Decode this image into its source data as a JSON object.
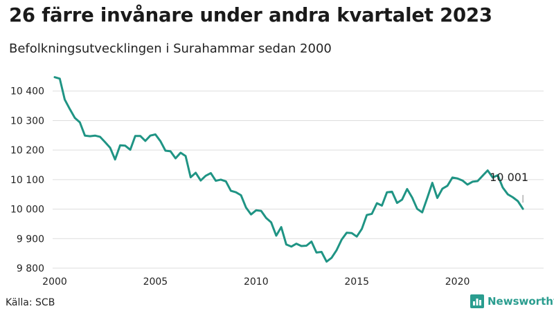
{
  "header": {
    "title": "26 färre invånare under andra kvartalet 2023",
    "subtitle": "Befolkningsutvecklingen i Surahammar sedan 2000"
  },
  "footer": {
    "source": "Källa: SCB",
    "brand": "Newsworthy"
  },
  "colors": {
    "line": "#1f9484",
    "grid": "#dddddd",
    "brand": "#2a9d8f"
  },
  "chart_data": {
    "type": "line",
    "title": "26 färre invånare under andra kvartalet 2023",
    "subtitle": "Befolkningsutvecklingen i Surahammar sedan 2000",
    "xlabel": "",
    "ylabel": "",
    "xlim": [
      2000,
      2023.6
    ],
    "ylim": [
      9800,
      10450
    ],
    "x_ticks": [
      2000,
      2005,
      2010,
      2015,
      2020
    ],
    "y_ticks": [
      9800,
      9900,
      10000,
      10100,
      10200,
      10300,
      10400
    ],
    "y_tick_labels": [
      "9 800",
      "9 900",
      "10 000",
      "10 100",
      "10 200",
      "10 300",
      "10 400"
    ],
    "grid": "horizontal",
    "annotation": {
      "text": "10 001",
      "x": 2023.25,
      "y": 10001
    },
    "series": [
      {
        "x": [
          2000.0,
          2000.25,
          2000.5,
          2000.75,
          2001.0,
          2001.25,
          2001.5,
          2001.75,
          2002.0,
          2002.25,
          2002.5,
          2002.75,
          2003.0,
          2003.25,
          2003.5,
          2003.75,
          2004.0,
          2004.25,
          2004.5,
          2004.75,
          2005.0,
          2005.25,
          2005.5,
          2005.75,
          2006.0,
          2006.25,
          2006.5,
          2006.75,
          2007.0,
          2007.25,
          2007.5,
          2007.75,
          2008.0,
          2008.25,
          2008.5,
          2008.75,
          2009.0,
          2009.25,
          2009.5,
          2009.75,
          2010.0,
          2010.25,
          2010.5,
          2010.75,
          2011.0,
          2011.25,
          2011.5,
          2011.75,
          2012.0,
          2012.25,
          2012.5,
          2012.75,
          2013.0,
          2013.25,
          2013.5,
          2013.75,
          2014.0,
          2014.25,
          2014.5,
          2014.75,
          2015.0,
          2015.25,
          2015.5,
          2015.75,
          2016.0,
          2016.25,
          2016.5,
          2016.75,
          2017.0,
          2017.25,
          2017.5,
          2017.75,
          2018.0,
          2018.25,
          2018.5,
          2018.75,
          2019.0,
          2019.25,
          2019.5,
          2019.75,
          2020.0,
          2020.25,
          2020.5,
          2020.75,
          2021.0,
          2021.25,
          2021.5,
          2021.75,
          2022.0,
          2022.25,
          2022.5,
          2022.75,
          2023.0,
          2023.25
        ],
        "values": [
          10447,
          10442,
          10371,
          10339,
          10309,
          10294,
          10249,
          10247,
          10249,
          10245,
          10227,
          10208,
          10168,
          10216,
          10215,
          10201,
          10248,
          10248,
          10231,
          10249,
          10253,
          10230,
          10198,
          10196,
          10172,
          10191,
          10180,
          10108,
          10123,
          10097,
          10113,
          10122,
          10096,
          10100,
          10094,
          10062,
          10057,
          10047,
          10005,
          9982,
          9996,
          9994,
          9970,
          9955,
          9910,
          9939,
          9880,
          9873,
          9883,
          9875,
          9876,
          9890,
          9853,
          9855,
          9822,
          9835,
          9861,
          9897,
          9920,
          9919,
          9907,
          9933,
          9980,
          9984,
          10020,
          10012,
          10057,
          10059,
          10021,
          10032,
          10068,
          10039,
          10001,
          9989,
          10038,
          10089,
          10038,
          10069,
          10079,
          10107,
          10104,
          10097,
          10083,
          10093,
          10095,
          10113,
          10131,
          10107,
          10115,
          10073,
          10050,
          10040,
          10027,
          10001
        ]
      }
    ]
  }
}
